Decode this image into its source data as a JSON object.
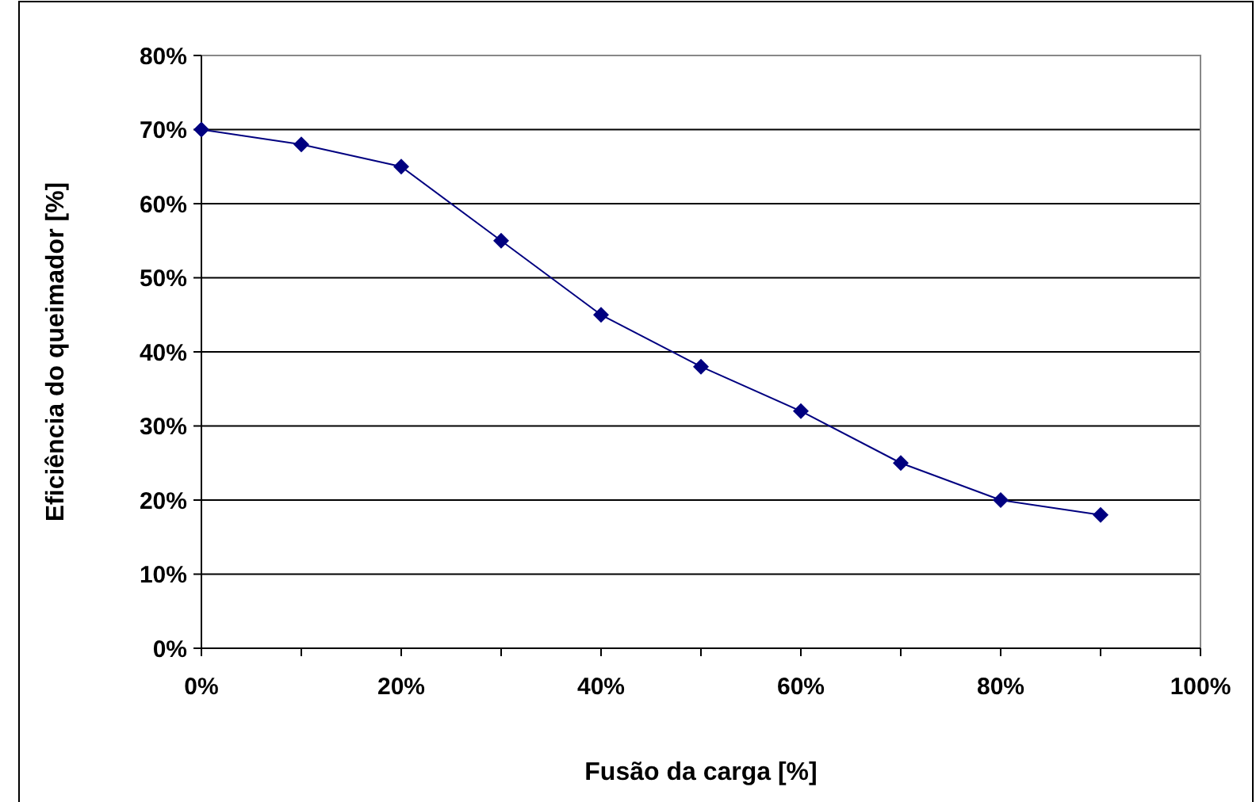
{
  "chart_data": {
    "type": "line",
    "xlabel": "Fusão da carga [%]",
    "ylabel": "Eficiência do queimador [%]",
    "x": [
      0,
      10,
      20,
      30,
      40,
      50,
      60,
      70,
      80,
      90
    ],
    "series": [
      {
        "color": "#000080",
        "values": [
          70,
          68,
          65,
          55,
          45,
          38,
          32,
          25,
          20,
          18
        ]
      }
    ],
    "xlim": [
      0,
      100
    ],
    "xticks": [
      {
        "value": 0,
        "label": "0%"
      },
      {
        "value": 10,
        "label": null
      },
      {
        "value": 20,
        "label": "20%"
      },
      {
        "value": 30,
        "label": null
      },
      {
        "value": 40,
        "label": "40%"
      },
      {
        "value": 50,
        "label": null
      },
      {
        "value": 60,
        "label": "60%"
      },
      {
        "value": 70,
        "label": null
      },
      {
        "value": 80,
        "label": "80%"
      },
      {
        "value": 90,
        "label": null
      },
      {
        "value": 100,
        "label": "100%"
      }
    ],
    "ylim": [
      0,
      80
    ],
    "yticks": [
      {
        "value": 0,
        "label": "0%"
      },
      {
        "value": 10,
        "label": "10%"
      },
      {
        "value": 20,
        "label": "20%"
      },
      {
        "value": 30,
        "label": "30%"
      },
      {
        "value": 40,
        "label": "40%"
      },
      {
        "value": 50,
        "label": "50%"
      },
      {
        "value": 60,
        "label": "60%"
      },
      {
        "value": 70,
        "label": "70%"
      },
      {
        "value": 80,
        "label": "80%"
      }
    ],
    "grid": "y",
    "marker": "diamond",
    "line_style": "solid"
  }
}
